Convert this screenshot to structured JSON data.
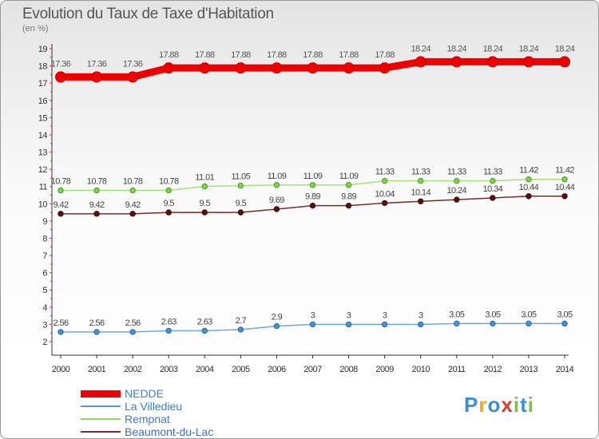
{
  "title": "Evolution du Taux de Taxe d'Habitation",
  "subtitle": "(en %)",
  "chart_data": {
    "type": "line",
    "title": "Evolution du Taux de Taxe d'Habitation",
    "ylabel": "(en %)",
    "x": [
      "2000",
      "2001",
      "2002",
      "2003",
      "2004",
      "2005",
      "2006",
      "2007",
      "2008",
      "2009",
      "2010",
      "2011",
      "2012",
      "2013",
      "2014"
    ],
    "ylim": [
      2,
      19
    ],
    "yticks": [
      "2",
      "3",
      "4",
      "5",
      "6",
      "7",
      "8",
      "9",
      "10",
      "11",
      "12",
      "13",
      "14",
      "15",
      "16",
      "17",
      "18",
      "19"
    ],
    "grid": false,
    "legend_position": "bottom-left",
    "series": [
      {
        "name": "NEDDE",
        "color": "#ee0000",
        "values": [
          17.36,
          17.36,
          17.36,
          17.88,
          17.88,
          17.88,
          17.88,
          17.88,
          17.88,
          17.88,
          18.24,
          18.24,
          18.24,
          18.24,
          18.24
        ],
        "labels": [
          "17.36",
          "17.36",
          "17.36",
          "17.88",
          "17.88",
          "17.88",
          "17.88",
          "17.88",
          "17.88",
          "17.88",
          "18.24",
          "18.24",
          "18.24",
          "18.24",
          "18.24"
        ]
      },
      {
        "name": "La Villedieu",
        "color": "#5b9bd5",
        "values": [
          2.56,
          2.56,
          2.56,
          2.63,
          2.63,
          2.7,
          2.9,
          3,
          3,
          3,
          3,
          3.05,
          3.05,
          3.05,
          3.05
        ],
        "labels": [
          "2.56",
          "2.56",
          "2.56",
          "2.63",
          "2.63",
          "2.7",
          "2.9",
          "3",
          "3",
          "3",
          "3",
          "3.05",
          "3.05",
          "3.05",
          "3.05"
        ]
      },
      {
        "name": "Rempnat",
        "color": "#8fdc5a",
        "values": [
          10.78,
          10.78,
          10.78,
          10.78,
          11.01,
          11.05,
          11.09,
          11.09,
          11.09,
          11.33,
          11.33,
          11.33,
          11.33,
          11.42,
          11.42
        ],
        "labels": [
          "10.78",
          "10.78",
          "10.78",
          "10.78",
          "11.01",
          "11.05",
          "11.09",
          "11.09",
          "11.09",
          "11.33",
          "11.33",
          "11.33",
          "11.33",
          "11.42",
          "11.42"
        ]
      },
      {
        "name": "Beaumont-du-Lac",
        "color": "#7a2a2a",
        "values": [
          9.42,
          9.42,
          9.42,
          9.5,
          9.5,
          9.5,
          9.69,
          9.89,
          9.89,
          10.04,
          10.14,
          10.24,
          10.34,
          10.44,
          10.44
        ],
        "labels": [
          "9.42",
          "9.42",
          "9.42",
          "9.5",
          "9.5",
          "9.5",
          "9.69",
          "9.89",
          "9.89",
          "10.04",
          "10.14",
          "10.24",
          "10.34",
          "10.44",
          "10.44"
        ]
      }
    ]
  },
  "legend": [
    {
      "label": "NEDDE",
      "color": "#ee0000"
    },
    {
      "label": "La Villedieu",
      "color": "#5b9bd5"
    },
    {
      "label": "Rempnat",
      "color": "#8fdc5a"
    },
    {
      "label": "Beaumont-du-Lac",
      "color": "#7a2a2a"
    }
  ],
  "logo": {
    "text": "Proxiti",
    "letters": [
      "P",
      "r",
      "o",
      "x",
      "i",
      "t",
      "i"
    ],
    "colors": [
      "#3a8fd6",
      "#f2a52a",
      "#3a8fd6",
      "#e03a2a",
      "#7cc242",
      "#3a8fd6",
      "#7cc242"
    ]
  }
}
